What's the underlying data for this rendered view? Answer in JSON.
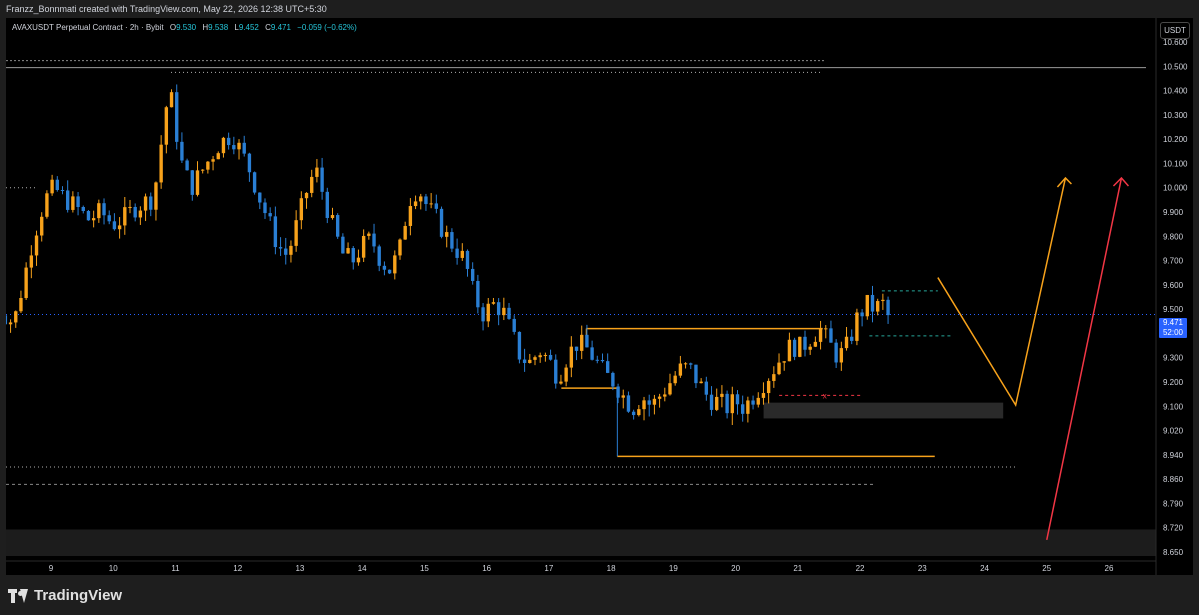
{
  "header": {
    "creator_line": "Franzz_Bonnmati created with TradingView.com, May 22, 2026 12:38 UTC+5:30"
  },
  "legend": {
    "symbol": "AVAXUSDT Perpetual Contract · 2h · Bybit",
    "open_label": "O",
    "open": "9.530",
    "high_label": "H",
    "high": "9.538",
    "low_label": "L",
    "low": "9.452",
    "close_label": "C",
    "close": "9.471",
    "change": "−0.059 (−0.62%)"
  },
  "currency_button": "USDT",
  "price_tag": {
    "price": "9.471",
    "countdown": "52:00"
  },
  "footer": {
    "brand": "TradingView"
  },
  "colors": {
    "up": "#f7a21b",
    "down": "#2a7fd4",
    "accent": "#2962ff",
    "value": "#26c6da",
    "red_arrow": "#f23645"
  },
  "chart_data": {
    "type": "candlestick",
    "title": "",
    "xlabel": "",
    "ylabel": "",
    "ylim": [
      8.64,
      10.6
    ],
    "y_ticks": [
      "10.600",
      "10.500",
      "10.400",
      "10.300",
      "10.200",
      "10.100",
      "10.000",
      "9.900",
      "9.800",
      "9.700",
      "9.600",
      "9.500",
      "9.400",
      "9.300",
      "9.200",
      "9.100",
      "9.020",
      "8.940",
      "8.860",
      "8.790",
      "8.720",
      "8.650"
    ],
    "x_ticks": [
      "9",
      "10",
      "11",
      "12",
      "13",
      "14",
      "15",
      "16",
      "17",
      "18",
      "19",
      "20",
      "21",
      "22",
      "23",
      "24",
      "25",
      "26"
    ],
    "x_tick_values": [
      9,
      10,
      11,
      12,
      13,
      14,
      15,
      16,
      17,
      18,
      19,
      20,
      21,
      22,
      23,
      24,
      25,
      26
    ],
    "xlim": [
      8.4,
      26.4
    ],
    "candle_span": [
      8.1,
      22.45
    ],
    "candle_count": 173,
    "anchors": [
      [
        8.1,
        9.52
      ],
      [
        8.4,
        9.44
      ],
      [
        8.5,
        9.55
      ],
      [
        8.7,
        9.78
      ],
      [
        8.9,
        9.95
      ],
      [
        9.05,
        10.0
      ],
      [
        9.2,
        9.96
      ],
      [
        9.4,
        9.92
      ],
      [
        9.6,
        9.87
      ],
      [
        9.8,
        9.9
      ],
      [
        10.0,
        9.85
      ],
      [
        10.2,
        9.88
      ],
      [
        10.35,
        9.92
      ],
      [
        10.5,
        9.94
      ],
      [
        10.65,
        9.96
      ],
      [
        10.78,
        10.2
      ],
      [
        10.9,
        10.42
      ],
      [
        11.0,
        10.25
      ],
      [
        11.1,
        10.1
      ],
      [
        11.25,
        10.0
      ],
      [
        11.4,
        10.06
      ],
      [
        11.55,
        10.12
      ],
      [
        11.7,
        10.18
      ],
      [
        11.9,
        10.22
      ],
      [
        12.05,
        10.15
      ],
      [
        12.2,
        10.07
      ],
      [
        12.35,
        9.96
      ],
      [
        12.5,
        9.86
      ],
      [
        12.65,
        9.76
      ],
      [
        12.8,
        9.72
      ],
      [
        12.95,
        9.85
      ],
      [
        13.1,
        9.98
      ],
      [
        13.25,
        10.08
      ],
      [
        13.4,
        9.95
      ],
      [
        13.55,
        9.82
      ],
      [
        13.7,
        9.72
      ],
      [
        13.85,
        9.7
      ],
      [
        14.0,
        9.76
      ],
      [
        14.15,
        9.79
      ],
      [
        14.3,
        9.7
      ],
      [
        14.45,
        9.66
      ],
      [
        14.6,
        9.74
      ],
      [
        14.75,
        9.95
      ],
      [
        14.9,
        10.0
      ],
      [
        15.05,
        9.92
      ],
      [
        15.2,
        9.87
      ],
      [
        15.35,
        9.8
      ],
      [
        15.5,
        9.75
      ],
      [
        15.65,
        9.7
      ],
      [
        15.8,
        9.55
      ],
      [
        15.95,
        9.48
      ],
      [
        16.1,
        9.52
      ],
      [
        16.25,
        9.5
      ],
      [
        16.4,
        9.4
      ],
      [
        16.55,
        9.3
      ],
      [
        16.7,
        9.28
      ],
      [
        16.85,
        9.33
      ],
      [
        17.0,
        9.29
      ],
      [
        17.15,
        9.22
      ],
      [
        17.3,
        9.31
      ],
      [
        17.45,
        9.36
      ],
      [
        17.6,
        9.34
      ],
      [
        17.75,
        9.29
      ],
      [
        17.9,
        9.23
      ],
      [
        18.05,
        9.2
      ],
      [
        18.2,
        9.14
      ],
      [
        18.35,
        9.1
      ],
      [
        18.5,
        9.14
      ],
      [
        18.65,
        9.1
      ],
      [
        18.8,
        9.15
      ],
      [
        18.95,
        9.2
      ],
      [
        19.1,
        9.25
      ],
      [
        19.25,
        9.26
      ],
      [
        19.4,
        9.2
      ],
      [
        19.55,
        9.14
      ],
      [
        19.7,
        9.12
      ],
      [
        19.85,
        9.1
      ],
      [
        20.0,
        9.12
      ],
      [
        20.15,
        9.1
      ],
      [
        20.3,
        9.15
      ],
      [
        20.45,
        9.2
      ],
      [
        20.6,
        9.25
      ],
      [
        20.75,
        9.31
      ],
      [
        20.9,
        9.35
      ],
      [
        21.05,
        9.34
      ],
      [
        21.2,
        9.38
      ],
      [
        21.35,
        9.42
      ],
      [
        21.5,
        9.36
      ],
      [
        21.65,
        9.3
      ],
      [
        21.8,
        9.35
      ],
      [
        21.95,
        9.46
      ],
      [
        22.1,
        9.52
      ],
      [
        22.25,
        9.5
      ],
      [
        22.35,
        9.53
      ],
      [
        22.45,
        9.47
      ]
    ],
    "reference_lines": [
      10.515,
      10.475,
      10.0,
      9.478,
      8.9,
      8.845
    ]
  }
}
